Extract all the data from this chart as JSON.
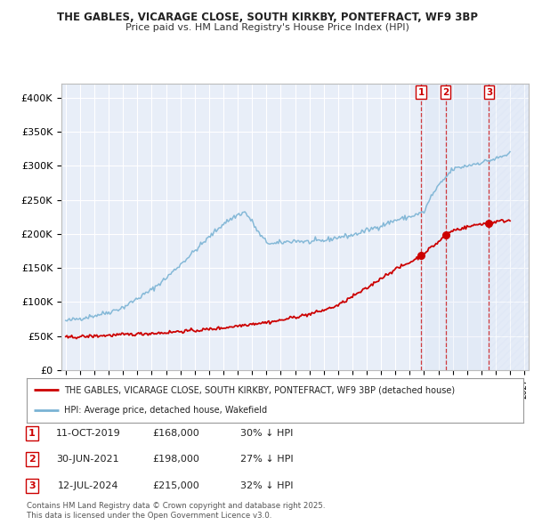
{
  "title1": "THE GABLES, VICARAGE CLOSE, SOUTH KIRKBY, PONTEFRACT, WF9 3BP",
  "title2": "Price paid vs. HM Land Registry's House Price Index (HPI)",
  "background_color": "#ffffff",
  "plot_bg_color": "#e8eef8",
  "grid_color": "#ffffff",
  "hpi_color": "#7ab3d4",
  "price_color": "#cc0000",
  "transaction_info": [
    {
      "num": "1",
      "date": "11-OCT-2019",
      "price": "£168,000",
      "pct": "30% ↓ HPI"
    },
    {
      "num": "2",
      "date": "30-JUN-2021",
      "price": "£198,000",
      "pct": "27% ↓ HPI"
    },
    {
      "num": "3",
      "date": "12-JUL-2024",
      "price": "£215,000",
      "pct": "32% ↓ HPI"
    }
  ],
  "legend_label1": "THE GABLES, VICARAGE CLOSE, SOUTH KIRKBY, PONTEFRACT, WF9 3BP (detached house)",
  "legend_label2": "HPI: Average price, detached house, Wakefield",
  "footer1": "Contains HM Land Registry data © Crown copyright and database right 2025.",
  "footer2": "This data is licensed under the Open Government Licence v3.0.",
  "ylim": [
    0,
    420000
  ],
  "yticks": [
    0,
    50000,
    100000,
    150000,
    200000,
    250000,
    300000,
    350000,
    400000
  ],
  "xlim_start": 1994.7,
  "xlim_end": 2027.3,
  "trans_dates": [
    2019.785,
    2021.497,
    2024.536
  ],
  "trans_prices": [
    168000,
    198000,
    215000
  ],
  "trans_labels": [
    "1",
    "2",
    "3"
  ],
  "hpi_anchors_x": [
    1995,
    1996,
    1997,
    1998,
    1999,
    2000,
    2001,
    2002,
    2003,
    2004,
    2005,
    2006,
    2007,
    2007.5,
    2008,
    2008.5,
    2009,
    2009.5,
    2010,
    2011,
    2012,
    2013,
    2014,
    2015,
    2016,
    2017,
    2018,
    2019,
    2020,
    2020.5,
    2021,
    2022,
    2023,
    2024,
    2025,
    2026
  ],
  "hpi_anchors_y": [
    72000,
    76000,
    80000,
    85000,
    92000,
    105000,
    118000,
    135000,
    155000,
    175000,
    195000,
    215000,
    228000,
    232000,
    218000,
    200000,
    188000,
    185000,
    187000,
    190000,
    188000,
    190000,
    195000,
    198000,
    205000,
    212000,
    220000,
    225000,
    232000,
    255000,
    270000,
    295000,
    300000,
    305000,
    310000,
    318000
  ],
  "price_anchors_x": [
    1995,
    1996,
    1997,
    1998,
    1999,
    2000,
    2001,
    2002,
    2003,
    2004,
    2005,
    2006,
    2007,
    2008,
    2009,
    2010,
    2011,
    2012,
    2013,
    2014,
    2015,
    2016,
    2017,
    2018,
    2019,
    2019.785,
    2020,
    2021,
    2021.497,
    2022,
    2023,
    2024,
    2024.536,
    2025,
    2026
  ],
  "price_anchors_y": [
    48000,
    49000,
    50000,
    51000,
    52000,
    53000,
    54000,
    55000,
    57000,
    58000,
    60000,
    62000,
    65000,
    68000,
    70000,
    73000,
    78000,
    82000,
    88000,
    95000,
    108000,
    120000,
    135000,
    148000,
    158000,
    168000,
    172000,
    188000,
    198000,
    205000,
    210000,
    215000,
    215000,
    218000,
    220000
  ]
}
